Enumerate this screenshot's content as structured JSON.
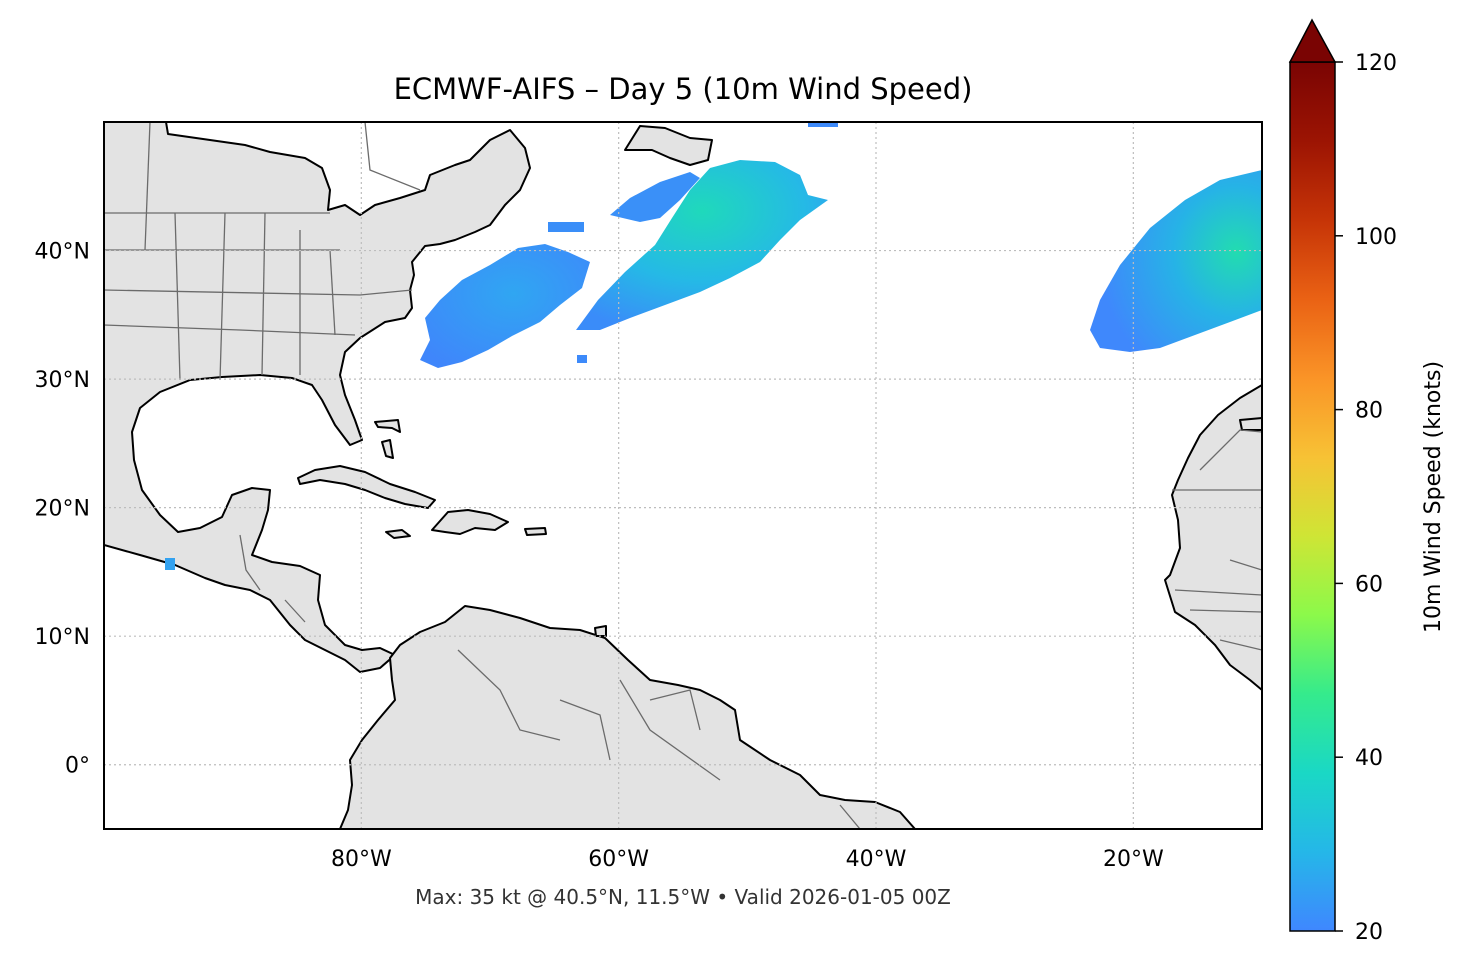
{
  "map": {
    "title": "ECMWF-AIFS – Day 5 (10m Wind Speed)",
    "footer": "Max: 35 kt @ 40.5°N, 11.5°W • Valid 2026-01-05 00Z",
    "lon_range": [
      -100,
      -10
    ],
    "lat_range": [
      -5,
      50
    ],
    "land_color": "#e3e3e3",
    "ocean_color": "#ffffff",
    "lat_ticks": [
      {
        "value": 40,
        "label": "40°N"
      },
      {
        "value": 30,
        "label": "30°N"
      },
      {
        "value": 20,
        "label": "20°N"
      },
      {
        "value": 10,
        "label": "10°N"
      },
      {
        "value": 0,
        "label": "0°"
      }
    ],
    "lon_ticks": [
      {
        "value": -80,
        "label": "80°W"
      },
      {
        "value": -60,
        "label": "60°W"
      },
      {
        "value": -40,
        "label": "40°W"
      },
      {
        "value": -20,
        "label": "20°W"
      }
    ],
    "wind_areas": [
      {
        "name": "wind-area-off-carolinas",
        "approx_speed_kt": 25
      },
      {
        "name": "wind-area-central-atlantic",
        "approx_speed_kt": 32
      },
      {
        "name": "wind-area-northeast-atlantic",
        "approx_speed_kt": 35
      }
    ]
  },
  "colorbar": {
    "label": "10m Wind Speed (knots)",
    "min": 20,
    "max": 120,
    "extend": "max",
    "ticks": [
      {
        "value": 20,
        "label": "20"
      },
      {
        "value": 40,
        "label": "40"
      },
      {
        "value": 60,
        "label": "60"
      },
      {
        "value": 80,
        "label": "80"
      },
      {
        "value": 100,
        "label": "100"
      },
      {
        "value": 120,
        "label": "120"
      }
    ],
    "colormap_stops": [
      "#3f87ff",
      "#25b7e8",
      "#1ad8c5",
      "#35eb8c",
      "#8cf94a",
      "#cfe535",
      "#f7c235",
      "#fa9427",
      "#ea6214",
      "#c63407",
      "#9c1403",
      "#7a0403"
    ]
  }
}
